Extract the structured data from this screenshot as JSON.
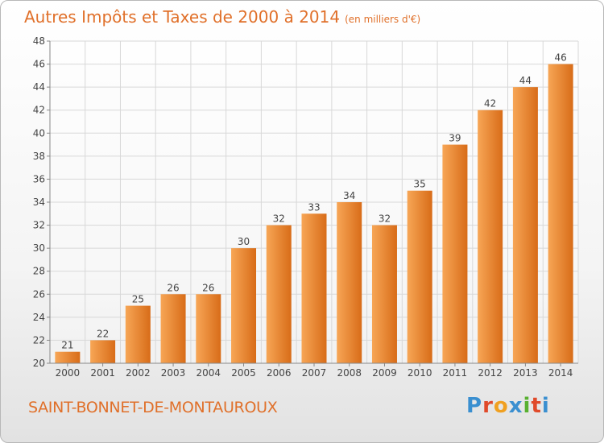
{
  "title": "Autres Impôts et Taxes de 2000 à 2014",
  "unit": "(en milliers d'€)",
  "place": "SAINT-BONNET-DE-MONTAUROUX",
  "logo": "Proxiti",
  "colors": {
    "title": "#e0702a",
    "bar_light": "#f7a656",
    "bar_dark": "#d86c18",
    "grid": "#d8d8d8",
    "logo_letters": [
      "#3a8fd0",
      "#e04a2a",
      "#f0a020",
      "#3a8fd0",
      "#58b030",
      "#e04a2a",
      "#3a8fd0"
    ]
  },
  "chart_data": {
    "type": "bar",
    "categories": [
      "2000",
      "2001",
      "2002",
      "2003",
      "2004",
      "2005",
      "2006",
      "2007",
      "2008",
      "2009",
      "2010",
      "2011",
      "2012",
      "2013",
      "2014"
    ],
    "values": [
      21,
      22,
      25,
      26,
      26,
      30,
      32,
      33,
      34,
      32,
      35,
      39,
      42,
      44,
      46
    ],
    "ylim": [
      20,
      48
    ],
    "yticks": [
      20,
      22,
      24,
      26,
      28,
      30,
      32,
      34,
      36,
      38,
      40,
      42,
      44,
      46,
      48
    ],
    "grid": true
  }
}
